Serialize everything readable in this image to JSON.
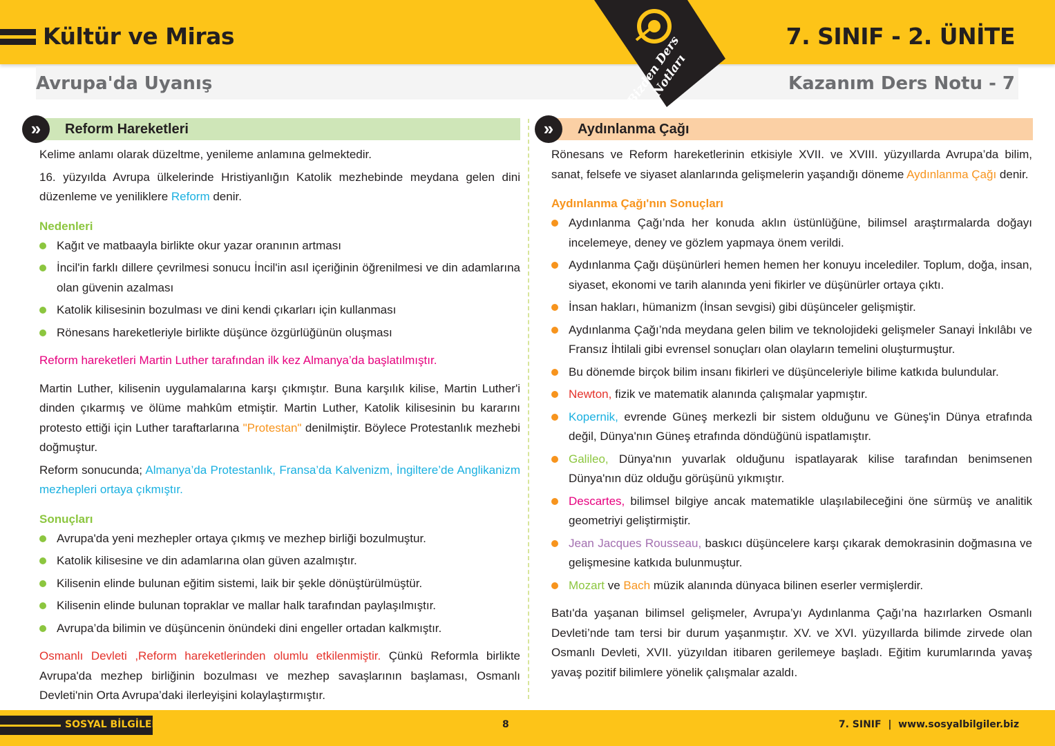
{
  "header": {
    "title": "Kültür ve Miras",
    "unit": "7. SINIF - 2. ÜNİTE",
    "subtitle": "Avrupa'da Uyanış",
    "lesson": "Kazanım Ders Notu - 7",
    "badge": "Bizden Ders Notları"
  },
  "colors": {
    "yellow": "#fdc418",
    "dark": "#231f20",
    "green": "#8cc63f",
    "cyan": "#1ab0e0",
    "magenta": "#e6007e",
    "orange": "#f7941d",
    "red": "#e4322b",
    "purple": "#a36fb0"
  },
  "left": {
    "heading": "Reform Hareketleri",
    "blocks": [
      {
        "t": "p",
        "s": [
          [
            "Kelime anlamı olarak düzeltme, yenileme anlamına gelmektedir.",
            ""
          ]
        ]
      },
      {
        "t": "p",
        "s": [
          [
            "16. yüzyılda Avrupa ülkelerinde Hristiyanlığın Katolik mezhebinde meydana gelen dini düzenleme ve yeniliklere ",
            ""
          ],
          [
            "Reform",
            "cyan"
          ],
          [
            " denir.",
            ""
          ]
        ]
      },
      {
        "t": "h",
        "s": [
          [
            "Nedenleri",
            ""
          ]
        ]
      },
      {
        "t": "li",
        "s": [
          [
            "Kağıt ve matbaayla birlikte okur yazar oranının artması",
            ""
          ]
        ]
      },
      {
        "t": "li",
        "s": [
          [
            "İncil'in farklı dillere çevrilmesi sonucu İncil'in asıl içeriğinin öğrenilmesi ve din adamlarına olan güvenin azalması",
            ""
          ]
        ]
      },
      {
        "t": "li",
        "s": [
          [
            "Katolik kilisesinin bozulması ve dini kendi çıkarları için kullanması",
            ""
          ]
        ]
      },
      {
        "t": "li",
        "s": [
          [
            "Rönesans hareketleriyle birlikte düşünce özgürlüğünün oluşması",
            ""
          ]
        ]
      },
      {
        "t": "p",
        "gap": 1,
        "s": [
          [
            "Reform hareketleri Martin Luther tarafından ilk kez Almanya’da başlatılmıştır.",
            "magenta"
          ]
        ]
      },
      {
        "t": "p",
        "gap": 1,
        "s": [
          [
            "Martin Luther, kilisenin uygulamalarına karşı çıkmıştır. Buna karşılık kilise, Martin Luther'i dinden çıkarmış ve ölüme mahkûm etmiştir. Martin Luther, Katolik kilisesinin bu kararını protesto ettiği için Luther taraftarlarına ",
            ""
          ],
          [
            "\"Protestan\"",
            "orange"
          ],
          [
            " denilmiştir. Böylece Protestanlık mezhebi doğmuştur.",
            ""
          ]
        ]
      },
      {
        "t": "p",
        "s": [
          [
            "Reform sonucunda; ",
            ""
          ],
          [
            "Almanya’da Protestanlık, Fransa’da Kalvenizm, İngiltere’de Anglikanizm mezhepleri ortaya çıkmıştır.",
            "cyan"
          ]
        ]
      },
      {
        "t": "h",
        "s": [
          [
            "Sonuçları",
            ""
          ]
        ]
      },
      {
        "t": "li",
        "s": [
          [
            "Avrupa'da yeni mezhepler ortaya çıkmış ve mezhep birliği bozulmuştur.",
            ""
          ]
        ]
      },
      {
        "t": "li",
        "s": [
          [
            "Katolik kilisesine ve din adamlarına olan güven azalmıştır.",
            ""
          ]
        ]
      },
      {
        "t": "li",
        "s": [
          [
            "Kilisenin elinde bulunan eğitim sistemi, laik bir şekle dönüştürülmüştür.",
            ""
          ]
        ]
      },
      {
        "t": "li",
        "s": [
          [
            "Kilisenin elinde bulunan topraklar ve mallar halk tarafından paylaşılmıştır.",
            ""
          ]
        ]
      },
      {
        "t": "li",
        "s": [
          [
            "Avrupa’da bilimin ve düşüncenin önündeki dini engeller ortadan kalkmıştır.",
            ""
          ]
        ]
      },
      {
        "t": "p",
        "gap": 1,
        "s": [
          [
            "Osmanlı Devleti ,Reform hareketlerinden olumlu etkilenmiştir.",
            "red"
          ],
          [
            "  Çünkü Reformla birlikte Avrupa'da mezhep birliğinin bozulması ve mezhep savaşlarının başlaması, Osmanlı Devleti'nin Orta Avrupa’daki ilerleyişini kolaylaştırmıştır.",
            ""
          ]
        ]
      }
    ]
  },
  "right": {
    "heading": "Aydınlanma Çağı",
    "blocks": [
      {
        "t": "p",
        "s": [
          [
            "Rönesans ve Reform hareketlerinin etkisiyle XVII. ve XVIII. yüzyıllarda Avrupa’da bilim, sanat, felsefe ve siyaset alanlarında gelişmelerin yaşandığı döneme ",
            ""
          ],
          [
            "Aydınlanma Çağı",
            "orange"
          ],
          [
            " denir.",
            ""
          ]
        ]
      },
      {
        "t": "h",
        "c": "orange",
        "s": [
          [
            "Aydınlanma Çağı'nın Sonuçları",
            ""
          ]
        ]
      },
      {
        "t": "li",
        "s": [
          [
            "Aydınlanma Çağı’nda her konuda aklın üstünlüğüne, bilimsel araştırmalarda doğayı incelemeye, deney ve gözlem yapmaya önem verildi.",
            ""
          ]
        ]
      },
      {
        "t": "li",
        "s": [
          [
            "Aydınlanma Çağı düşünürleri hemen hemen her konuyu incelediler. Toplum, doğa, insan, siyaset, ekonomi ve tarih alanında yeni fikirler ve düşünürler ortaya çıktı.",
            ""
          ]
        ]
      },
      {
        "t": "li",
        "s": [
          [
            "İnsan hakları, hümanizm (İnsan sevgisi) gibi düşünceler gelişmiştir.",
            ""
          ]
        ]
      },
      {
        "t": "li",
        "s": [
          [
            "Aydınlanma Çağı’nda meydana gelen bilim ve teknolojideki gelişmeler Sanayi İnkılâbı ve Fransız İhtilali gibi evrensel sonuçları olan olayların temelini oluşturmuştur.",
            ""
          ]
        ]
      },
      {
        "t": "li",
        "s": [
          [
            "Bu dönemde birçok bilim insanı fikirleri ve düşünceleriyle bilime katkıda bulundular.",
            ""
          ]
        ]
      },
      {
        "t": "li",
        "s": [
          [
            "Newton,",
            "red"
          ],
          [
            " fizik ve matematik alanında çalışmalar yapmıştır.",
            ""
          ]
        ]
      },
      {
        "t": "li",
        "s": [
          [
            "Kopernik,",
            "cyan"
          ],
          [
            " evrende Güneş merkezli bir sistem olduğunu ve Güneş'in Dünya etrafında değil, Dünya'nın Güneş etrafında döndüğünü ispatlamıştır.",
            ""
          ]
        ]
      },
      {
        "t": "li",
        "s": [
          [
            "Galileo,",
            "green"
          ],
          [
            " Dünya'nın yuvarlak olduğunu ispatlayarak kilise tarafından benimsenen Dünya'nın düz olduğu görüşünü yıkmıştır.",
            ""
          ]
        ]
      },
      {
        "t": "li",
        "s": [
          [
            "Descartes,",
            "magenta"
          ],
          [
            " bilimsel bilgiye ancak matematikle ulaşılabileceğini öne sürmüş ve analitik geometriyi geliştirmiştir.",
            ""
          ]
        ]
      },
      {
        "t": "li",
        "s": [
          [
            "Jean Jacques Rousseau,",
            "purple"
          ],
          [
            " baskıcı düşüncelere karşı çıkarak demokrasinin doğmasına ve gelişmesine katkıda bulunmuştur.",
            ""
          ]
        ]
      },
      {
        "t": "li",
        "s": [
          [
            "Mozart",
            "green"
          ],
          [
            " ve ",
            ""
          ],
          [
            "Bach",
            "orange"
          ],
          [
            " müzik alanında dünyaca bilinen eserler vermişlerdir.",
            ""
          ]
        ]
      },
      {
        "t": "p",
        "gap": 1,
        "s": [
          [
            "Batı'da yaşanan bilimsel gelişmeler, Avrupa’yı Aydınlanma Çağı’na hazırlarken Osmanlı Devleti’nde tam tersi bir durum yaşanmıştır. XV. ve XVI. yüzyıllarda bilimde zirvede olan Osmanlı Devleti, XVII. yüzyıldan itibaren gerilemeye başladı. Eğitim kurumlarında yavaş yavaş pozitif bilimlere yönelik çalışmalar azaldı.",
            ""
          ]
        ]
      }
    ]
  },
  "footer": {
    "subject": "SOSYAL BİLGİLER",
    "page": "8",
    "right": "7. SINIF  |  www.sosyalbilgiler.biz"
  }
}
